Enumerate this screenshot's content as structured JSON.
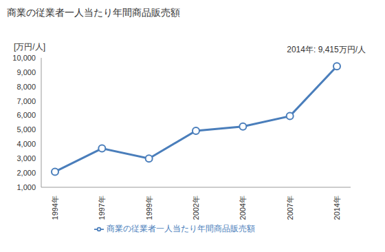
{
  "chart_data": {
    "type": "line",
    "title": "商業の従業者一人当たり年間商品販売額",
    "y_label": "[万円/人]",
    "annotations": [
      "2014年: 9,415万円/人"
    ],
    "categories": [
      "1994年",
      "1997年",
      "1999年",
      "2002年",
      "2004年",
      "2007年",
      "2014年"
    ],
    "series": [
      {
        "name": "商業の従業者一人当たり年間商品販売額",
        "color": "#4a7ebb",
        "marker": "circle",
        "values": [
          2080,
          3700,
          3000,
          4930,
          5230,
          5950,
          9415
        ]
      }
    ],
    "ylim": [
      1000,
      10000
    ],
    "yticks": [
      {
        "value": 1000,
        "label": "1,000"
      },
      {
        "value": 2000,
        "label": "2,000"
      },
      {
        "value": 3000,
        "label": "3,000"
      },
      {
        "value": 4000,
        "label": "4,000"
      },
      {
        "value": 5000,
        "label": "5,000"
      },
      {
        "value": 6000,
        "label": "6,000"
      },
      {
        "value": 7000,
        "label": "7,000"
      },
      {
        "value": 8000,
        "label": "8,000"
      },
      {
        "value": 9000,
        "label": "9,000"
      },
      {
        "value": 10000,
        "label": "10,000"
      }
    ],
    "grid": false,
    "legend": "bottom"
  }
}
